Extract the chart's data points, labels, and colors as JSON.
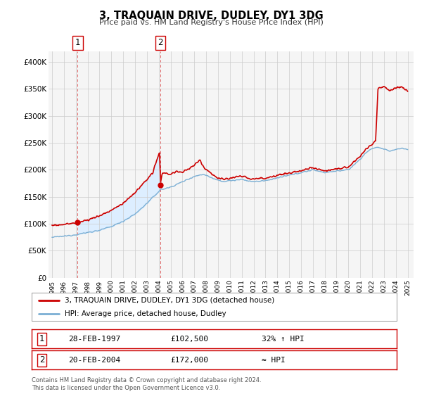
{
  "title": "3, TRAQUAIN DRIVE, DUDLEY, DY1 3DG",
  "subtitle": "Price paid vs. HM Land Registry's House Price Index (HPI)",
  "xlim": [
    1994.7,
    2025.5
  ],
  "ylim": [
    0,
    420000
  ],
  "yticks": [
    0,
    50000,
    100000,
    150000,
    200000,
    250000,
    300000,
    350000,
    400000
  ],
  "ytick_labels": [
    "£0",
    "£50K",
    "£100K",
    "£150K",
    "£200K",
    "£250K",
    "£300K",
    "£350K",
    "£400K"
  ],
  "xticks": [
    1995,
    1996,
    1997,
    1998,
    1999,
    2000,
    2001,
    2002,
    2003,
    2004,
    2005,
    2006,
    2007,
    2008,
    2009,
    2010,
    2011,
    2012,
    2013,
    2014,
    2015,
    2016,
    2017,
    2018,
    2019,
    2020,
    2021,
    2022,
    2023,
    2024,
    2025
  ],
  "sale1_x": 1997.16,
  "sale1_y": 102500,
  "sale2_x": 2004.13,
  "sale2_y": 172000,
  "legend_line1": "3, TRAQUAIN DRIVE, DUDLEY, DY1 3DG (detached house)",
  "legend_line2": "HPI: Average price, detached house, Dudley",
  "table_row1": [
    "1",
    "28-FEB-1997",
    "£102,500",
    "32% ↑ HPI"
  ],
  "table_row2": [
    "2",
    "20-FEB-2004",
    "£172,000",
    "≈ HPI"
  ],
  "footnote1": "Contains HM Land Registry data © Crown copyright and database right 2024.",
  "footnote2": "This data is licensed under the Open Government Licence v3.0.",
  "hpi_color": "#7bafd4",
  "sold_color": "#cc0000",
  "fill_color": "#ddeeff",
  "background_color": "#f5f5f5",
  "grid_color": "#cccccc",
  "hpi_anchors_x": [
    1995.0,
    1996.0,
    1997.0,
    1998.0,
    1999.0,
    2000.0,
    2001.0,
    2002.0,
    2003.0,
    2004.0,
    2004.13,
    2005.0,
    2006.0,
    2007.0,
    2007.8,
    2008.5,
    2009.5,
    2010.0,
    2011.0,
    2012.0,
    2013.0,
    2014.0,
    2015.0,
    2016.0,
    2017.0,
    2017.5,
    2018.0,
    2019.0,
    2020.0,
    2021.0,
    2021.5,
    2022.0,
    2022.5,
    2023.0,
    2023.5,
    2024.0,
    2024.5,
    2025.0
  ],
  "hpi_anchors_y": [
    75000,
    77000,
    80000,
    84000,
    88000,
    95000,
    105000,
    118000,
    138000,
    160000,
    163000,
    168000,
    178000,
    188000,
    192000,
    185000,
    178000,
    180000,
    182000,
    178000,
    180000,
    185000,
    190000,
    195000,
    200000,
    198000,
    195000,
    198000,
    200000,
    220000,
    232000,
    240000,
    242000,
    238000,
    235000,
    238000,
    240000,
    238000
  ],
  "sold_anchors_x": [
    1995.0,
    1996.5,
    1997.0,
    1997.16,
    1998.0,
    1999.0,
    2000.0,
    2001.0,
    2002.0,
    2003.0,
    2003.5,
    2003.8,
    2004.0,
    2004.1,
    2004.13,
    2004.3,
    2005.0,
    2005.5,
    2006.0,
    2006.5,
    2007.0,
    2007.3,
    2007.5,
    2007.8,
    2008.5,
    2009.0,
    2009.5,
    2010.0,
    2011.0,
    2012.0,
    2013.0,
    2014.0,
    2015.0,
    2016.0,
    2017.0,
    2017.5,
    2018.0,
    2019.0,
    2020.0,
    2021.0,
    2021.5,
    2022.0,
    2022.3,
    2022.5,
    2023.0,
    2023.3,
    2023.5,
    2024.0,
    2024.5,
    2025.0
  ],
  "sold_anchors_y": [
    97000,
    100000,
    101000,
    102500,
    107000,
    115000,
    125000,
    138000,
    158000,
    182000,
    195000,
    215000,
    228000,
    232000,
    172000,
    195000,
    192000,
    197000,
    195000,
    202000,
    208000,
    215000,
    218000,
    205000,
    192000,
    185000,
    182000,
    185000,
    188000,
    183000,
    185000,
    190000,
    194000,
    198000,
    205000,
    202000,
    198000,
    202000,
    205000,
    225000,
    238000,
    248000,
    255000,
    352000,
    355000,
    350000,
    348000,
    352000,
    355000,
    345000
  ]
}
